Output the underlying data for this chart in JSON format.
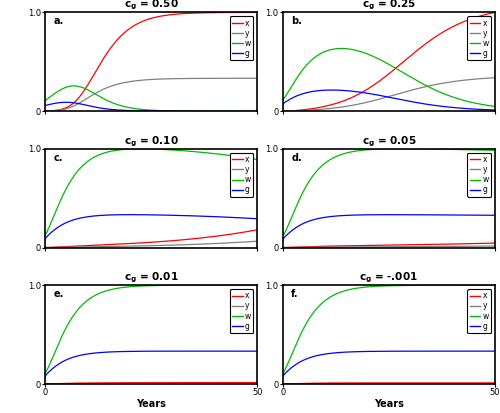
{
  "panels": [
    {
      "label": "a.",
      "cg_str": "c_g = 0.50",
      "cg": 0.5
    },
    {
      "label": "b.",
      "cg_str": "c_g = 0.25",
      "cg": 0.25
    },
    {
      "label": "c.",
      "cg_str": "c_g = 0.10",
      "cg": 0.1
    },
    {
      "label": "d.",
      "cg_str": "c_g = 0.05",
      "cg": 0.05
    },
    {
      "label": "e.",
      "cg_str": "c_g = 0.01",
      "cg": 0.01
    },
    {
      "label": "f.",
      "cg_str": "c_g = -.001",
      "cg": -0.001
    }
  ],
  "colors": {
    "x": "#FF0000",
    "y": "#808080",
    "w": "#00BB00",
    "g": "#0000FF"
  },
  "xlabel": "Years",
  "ylim": [
    0,
    1.0
  ],
  "xlim": [
    0,
    50
  ],
  "xticks": [
    0,
    50
  ],
  "yticks": [
    0,
    1.0
  ],
  "legend_labels": [
    "x",
    "y",
    "w",
    "g"
  ],
  "lw": 0.9
}
